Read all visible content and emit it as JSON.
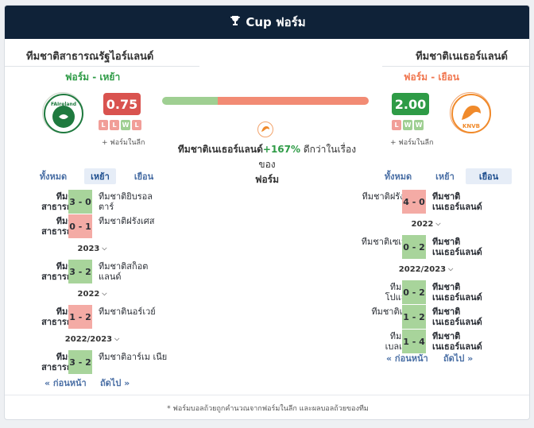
{
  "header": {
    "trophy_icon": "trophy-icon",
    "title": "Cup ฟอร์ม"
  },
  "home": {
    "name": "ทีมชาติสาธารณรัฐไอร์แลนด์",
    "form_label": "ฟอร์ม - เหย้า",
    "form_color": "#2e9b46",
    "score": "0.75",
    "score_color": "#d9534f",
    "logo_text": "FAIreland",
    "recent": [
      "L",
      "L",
      "W",
      "L"
    ],
    "league_note": "+ ฟอร์มในลีก",
    "tabs": [
      "ทั้งหมด",
      "เหย้า",
      "เยือน"
    ],
    "active_tab": 1,
    "matches": [
      {
        "home": "ทีมชาติ สาธารณรัฐ",
        "score": "3 - 0",
        "away": "ทีมชาติยิบรอล ตาร์",
        "result": "W"
      },
      {
        "home": "ทีมชาติ สาธารณรัฐ",
        "score": "0 - 1",
        "away": "ทีมชาติฝรั่งเศส",
        "result": "L"
      },
      {
        "year": "2023"
      },
      {
        "home": "ทีมชาติ สาธารณรัฐ",
        "score": "3 - 2",
        "away": "ทีมชาติสก็อตแลนด์",
        "result": "W"
      },
      {
        "year": "2022"
      },
      {
        "home": "ทีมชาติ สาธารณรัฐ",
        "score": "1 - 2",
        "away": "ทีมชาตินอร์เวย์",
        "result": "L"
      },
      {
        "year": "2022/2023"
      },
      {
        "home": "ทีมชาติ สาธารณรัฐ",
        "score": "3 - 2",
        "away": "ทีมชาติอาร์เม เนีย",
        "result": "W"
      }
    ],
    "prev": "« ก่อนหน้า",
    "next": "ถัดไป »"
  },
  "away": {
    "name": "ทีมชาติเนเธอร์แลนด์",
    "form_label": "ฟอร์ม - เยือน",
    "form_color": "#f0764f",
    "score": "2.00",
    "score_color": "#2e9b46",
    "logo_text": "KNVB",
    "recent": [
      "L",
      "W",
      "W"
    ],
    "league_note": "+ ฟอร์มในลีก",
    "tabs": [
      "ทั้งหมด",
      "เหย้า",
      "เยือน"
    ],
    "active_tab": 2,
    "matches": [
      {
        "home": "ทีมชาติฝรั่งเศส",
        "score": "4 - 0",
        "away": "ทีมชาติ เนเธอร์แลนด์",
        "result": "L"
      },
      {
        "year": "2022"
      },
      {
        "home": "ทีมชาติเซเนกัล",
        "score": "0 - 2",
        "away": "ทีมชาติ เนเธอร์แลนด์",
        "result": "W"
      },
      {
        "year": "2022/2023"
      },
      {
        "home": "ทีมชาติ โปแลนด์",
        "score": "0 - 2",
        "away": "ทีมชาติ เนเธอร์แลนด์",
        "result": "W"
      },
      {
        "home": "ทีมชาติเวลส์",
        "score": "1 - 2",
        "away": "ทีมชาติ เนเธอร์แลนด์",
        "result": "W"
      },
      {
        "home": "ทีมชาติ เบลเยียม",
        "score": "1 - 4",
        "away": "ทีมชาติ เนเธอร์แลนด์",
        "result": "W"
      }
    ],
    "prev": "« ก่อนหน้า",
    "next": "ถัดไป »"
  },
  "comparison": {
    "home_share": 0.27,
    "home_color": "#9fcf92",
    "away_color": "#f28b74",
    "team": "ทีมชาติเนเธอร์แลนด์",
    "pct": "+167%",
    "text": " ดีกว่าในเรื่อง",
    "line2": "ของ",
    "line3": "ฟอร์ม"
  },
  "footer": {
    "note": "* ฟอร์มบอลถ้วยถูกคำนวณจากฟอร์มในลีก และผลบอลถ้วยของทีม"
  }
}
